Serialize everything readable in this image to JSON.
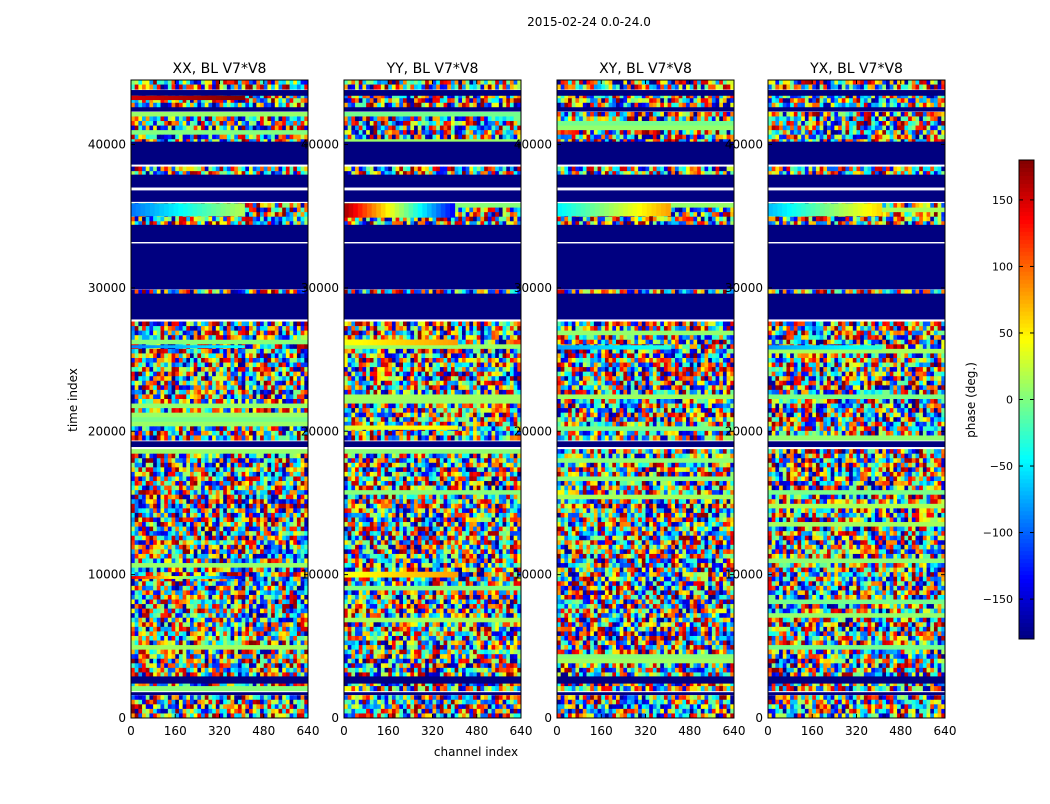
{
  "figure": {
    "suptitle": "2015-02-24 0.0-24.0",
    "xlabel": "channel index",
    "ylabel": "time index",
    "colorbar_label": "phase (deg.)"
  },
  "chart_data": {
    "type": "heatmap",
    "xlim": [
      0,
      640
    ],
    "ylim": [
      0,
      44500
    ],
    "xticks": [
      0,
      160,
      320,
      480,
      640
    ],
    "yticks": [
      0,
      10000,
      20000,
      30000,
      40000
    ],
    "colormap": "jet",
    "clim": [
      -180,
      180
    ],
    "colorbar_ticks": [
      -150,
      -100,
      -50,
      0,
      50,
      100,
      150
    ],
    "panels": [
      {
        "title": "XX, BL V7*V8",
        "coherent_bands": [
          {
            "y": [
              35000,
              35900
            ],
            "x": [
              0,
              410
            ],
            "value_range": [
              -95,
              20
            ],
            "note": ""
          },
          {
            "y": [
              25800,
              26000
            ],
            "x": [
              0,
              410
            ],
            "value_range": [
              -90,
              -40
            ],
            "note": ""
          },
          {
            "y": [
              9700,
              9900
            ],
            "x": [
              0,
              410
            ],
            "value_range": [
              150,
              -150
            ],
            "note": ""
          },
          {
            "y": [
              43100,
              43400
            ],
            "x": [
              0,
              410
            ],
            "value_range": [
              150,
              180
            ],
            "note": ""
          }
        ]
      },
      {
        "title": "YY, BL V7*V8",
        "coherent_bands": [
          {
            "y": [
              34900,
              35900
            ],
            "x": [
              0,
              400
            ],
            "value_range": [
              170,
              -140
            ],
            "note": ""
          },
          {
            "y": [
              26000,
              26400
            ],
            "x": [
              0,
              410
            ],
            "value_range": [
              40,
              80
            ],
            "note": ""
          },
          {
            "y": [
              20100,
              20400
            ],
            "x": [
              0,
              410
            ],
            "value_range": [
              30,
              50
            ],
            "note": ""
          },
          {
            "y": [
              9800,
              10200
            ],
            "x": [
              0,
              410
            ],
            "value_range": [
              40,
              80
            ],
            "note": ""
          }
        ]
      },
      {
        "title": "XY, BL V7*V8",
        "coherent_bands": [
          {
            "y": [
              35000,
              35900
            ],
            "x": [
              0,
              410
            ],
            "value_range": [
              -50,
              80
            ],
            "note": ""
          },
          {
            "y": [
              25700,
              26000
            ],
            "x": [
              0,
              410
            ],
            "value_range": [
              -80,
              -30
            ],
            "note": ""
          }
        ]
      },
      {
        "title": "YX, BL V7*V8",
        "coherent_bands": [
          {
            "y": [
              35000,
              35900
            ],
            "x": [
              0,
              410
            ],
            "value_range": [
              -70,
              60
            ],
            "note": ""
          },
          {
            "y": [
              25700,
              26000
            ],
            "x": [
              0,
              410
            ],
            "value_range": [
              -80,
              -30
            ],
            "note": ""
          }
        ]
      }
    ],
    "flagged_value": -180,
    "flagged_time_ranges": [
      [
        43400,
        43800
      ],
      [
        42300,
        42600
      ],
      [
        38600,
        40200
      ],
      [
        37000,
        37900
      ],
      [
        36000,
        36800
      ],
      [
        33200,
        34400
      ],
      [
        29900,
        33100
      ],
      [
        27800,
        29600
      ],
      [
        18900,
        19300
      ],
      [
        2400,
        2900
      ],
      [
        1600,
        1800
      ]
    ]
  }
}
